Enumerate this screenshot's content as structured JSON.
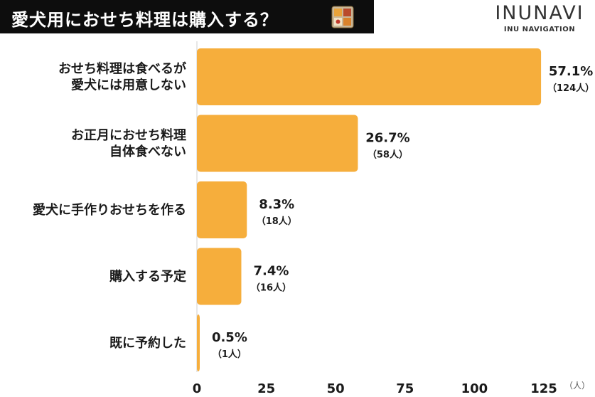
{
  "header": {
    "title": "愛犬用におせち料理は購入する？",
    "icon": "osechi-box-icon",
    "brand_name": "INUNAVI",
    "brand_sub": "INU NAVIGATION"
  },
  "colors": {
    "bar": "#F6AE3C",
    "title_bg": "#0d0d0d",
    "axis": "#cfcfcf"
  },
  "chart_data": {
    "type": "bar",
    "orientation": "horizontal",
    "title": "愛犬用におせち料理は購入する？",
    "xlabel": "",
    "ylabel": "",
    "x_unit": "（人）",
    "xlim": [
      0,
      125
    ],
    "xticks": [
      0,
      25,
      50,
      75,
      100,
      125
    ],
    "grid": false,
    "categories": [
      [
        "おせち料理は食べるが",
        "愛犬には用意しない"
      ],
      [
        "お正月におせち料理",
        "自体食べない"
      ],
      [
        "愛犬に手作りおせちを作る"
      ],
      [
        "購入する予定"
      ],
      [
        "既に予約した"
      ]
    ],
    "values": [
      124,
      58,
      18,
      16,
      1
    ],
    "percent_labels": [
      "57.1%",
      "26.7%",
      "8.3%",
      "7.4%",
      "0.5%"
    ],
    "count_labels": [
      "（124人）",
      "（58人）",
      "（18人）",
      "（16人）",
      "（1人）"
    ]
  }
}
